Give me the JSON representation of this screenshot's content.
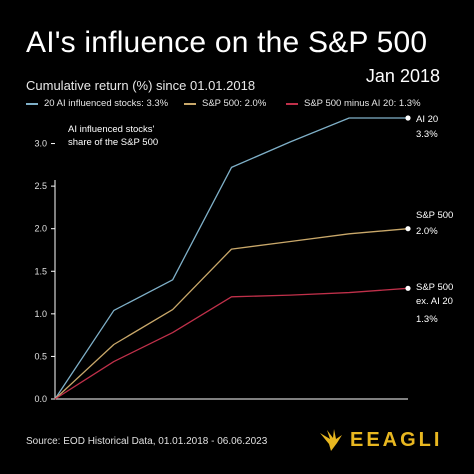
{
  "header": {
    "title": "AI's influence on the S&P 500",
    "subtitle": "Cumulative return (%) since 01.01.2018",
    "date_label": "Jan 2018"
  },
  "legend": [
    {
      "label": "20 AI influenced stocks: 3.3%",
      "color": "#7fb0c8"
    },
    {
      "label": "S&P 500: 2.0%",
      "color": "#c9a86a"
    },
    {
      "label": "S&P 500 minus AI 20: 1.3%",
      "color": "#c0304a"
    }
  ],
  "annotation": {
    "line1": "AI influenced stocks'",
    "line2": "share of the S&P 500"
  },
  "end_labels": {
    "ai20": [
      "AI 20",
      "3.3%"
    ],
    "sp500": [
      "S&P 500",
      "2.0%"
    ],
    "exai": [
      "S&P 500",
      "ex. AI 20",
      "1.3%"
    ]
  },
  "footer": {
    "source": "Source: EOD Historical Data, 01.01.2018 - 06.06.2023",
    "logo_text": "EEAGLI"
  },
  "colors": {
    "background": "#000000",
    "axis": "#ffffff",
    "logo": "#e8b720"
  },
  "chart_data": {
    "type": "line",
    "x": [
      0,
      1,
      2,
      3,
      4,
      5,
      6
    ],
    "ylim": [
      0,
      3.3
    ],
    "yticks": [
      "0.0",
      "0.5",
      "1.0",
      "1.5",
      "2.0",
      "2.5",
      "3.0"
    ],
    "series": [
      {
        "name": "20 AI influenced stocks",
        "color": "#7fb0c8",
        "values": [
          0,
          1.04,
          1.4,
          2.72,
          3.02,
          3.3,
          3.3
        ]
      },
      {
        "name": "S&P 500",
        "color": "#c9a86a",
        "values": [
          0,
          0.64,
          1.05,
          1.76,
          1.85,
          1.94,
          2.0
        ]
      },
      {
        "name": "S&P 500 minus AI 20",
        "color": "#c0304a",
        "values": [
          0,
          0.44,
          0.78,
          1.2,
          1.22,
          1.25,
          1.3
        ]
      }
    ]
  }
}
